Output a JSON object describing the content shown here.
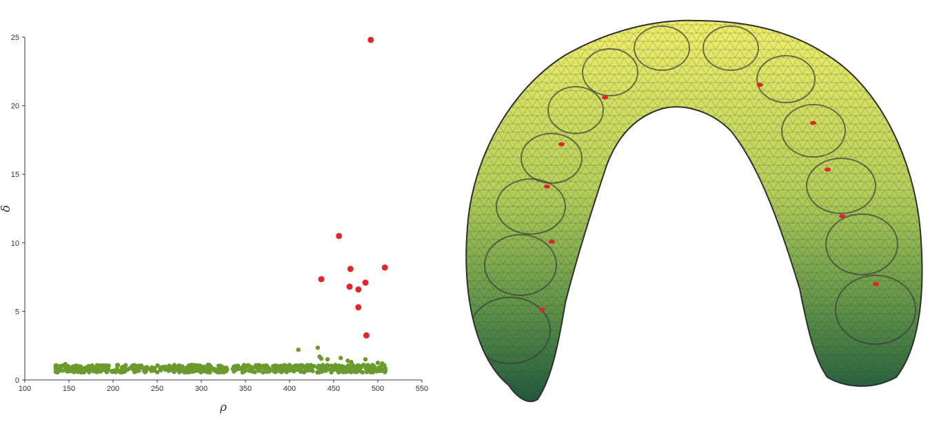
{
  "chart_data": [
    {
      "type": "scatter",
      "title": "",
      "xlabel": "ρ",
      "ylabel": "δ",
      "xlim": [
        100,
        550
      ],
      "ylim": [
        0,
        25
      ],
      "xticks": [
        "100",
        "150",
        "200",
        "250",
        "300",
        "350",
        "400",
        "450",
        "500",
        "550"
      ],
      "yticks": [
        "0",
        "5",
        "10",
        "15",
        "20",
        "25"
      ],
      "grid": false,
      "colors": {
        "cluster_centers": "#e0262b",
        "points": "#6b9a2e"
      },
      "centers": {
        "x": [
          492,
          456,
          436,
          469,
          468,
          478,
          486,
          508,
          478,
          487
        ],
        "y": [
          24.8,
          10.5,
          7.35,
          8.1,
          6.8,
          6.6,
          7.1,
          8.2,
          5.3,
          3.25
        ]
      },
      "points_band": {
        "x_range": [
          135,
          510
        ],
        "y_range": [
          0.55,
          1.1
        ],
        "count": 600
      },
      "points_outliers": {
        "x": [
          135,
          143,
          146,
          410,
          432,
          434,
          436,
          443,
          458,
          466,
          470,
          486,
          500,
          505
        ],
        "y": [
          0.6,
          1.05,
          1.15,
          2.2,
          2.35,
          1.7,
          1.55,
          1.5,
          1.6,
          1.4,
          1.3,
          1.5,
          1.25,
          1.2
        ]
      }
    },
    {
      "type": "diagram",
      "subject": "dental arch surface mesh",
      "colors": {
        "mesh_top": "#f0ee6a",
        "mesh_bottom": "#1f5a3c",
        "edge": "#3a3a3a",
        "marker": "#e0262b"
      },
      "markers": [
        {
          "x": 0.31,
          "y": 0.23
        },
        {
          "x": 0.63,
          "y": 0.2
        },
        {
          "x": 0.22,
          "y": 0.34
        },
        {
          "x": 0.74,
          "y": 0.29
        },
        {
          "x": 0.19,
          "y": 0.44
        },
        {
          "x": 0.77,
          "y": 0.4
        },
        {
          "x": 0.2,
          "y": 0.57
        },
        {
          "x": 0.8,
          "y": 0.51
        },
        {
          "x": 0.18,
          "y": 0.73
        },
        {
          "x": 0.87,
          "y": 0.67
        }
      ]
    }
  ]
}
